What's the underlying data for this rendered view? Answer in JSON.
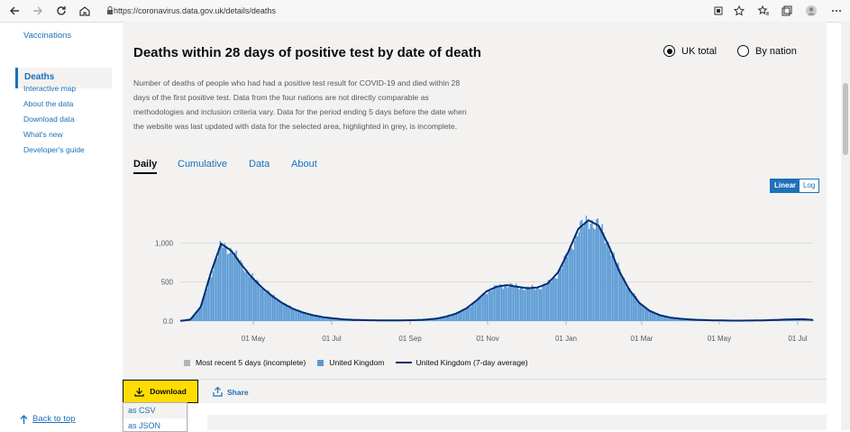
{
  "browser": {
    "url": "https://coronavirus.data.gov.uk/details/deaths"
  },
  "sidebar": {
    "items": [
      {
        "label": "Vaccinations"
      },
      {
        "label": "Deaths"
      }
    ],
    "links": [
      {
        "label": "Interactive map"
      },
      {
        "label": "About the data"
      },
      {
        "label": "Download data"
      },
      {
        "label": "What's new"
      },
      {
        "label": "Developer's guide"
      }
    ],
    "back_to_top": "Back to top"
  },
  "card": {
    "title": "Deaths within 28 days of positive test by date of death",
    "radio": [
      {
        "label": "UK total",
        "selected": true
      },
      {
        "label": "By nation",
        "selected": false
      }
    ],
    "description": "Number of deaths of people who had had a positive test result for COVID-19 and died within 28 days of the first positive test. Data from the four nations are not directly comparable as methodologies and inclusion criteria vary. Data for the period ending 5 days before the date when the website was last updated with data for the selected area, highlighted in grey, is incomplete.",
    "tabs": [
      {
        "label": "Daily",
        "active": true
      },
      {
        "label": "Cumulative",
        "active": false
      },
      {
        "label": "Data",
        "active": false
      },
      {
        "label": "About",
        "active": false
      }
    ],
    "scale": {
      "linear": "Linear",
      "log": "Log",
      "selected": "Linear"
    },
    "download_label": "Download",
    "share_label": "Share",
    "dropdown": [
      {
        "label": "as CSV"
      },
      {
        "label": "as JSON"
      }
    ]
  },
  "chart_data": {
    "type": "bar",
    "title": "",
    "xlabel": "",
    "ylabel": "",
    "ylim": [
      0,
      1400
    ],
    "yticks": [
      {
        "value": 0,
        "label": "0.0"
      },
      {
        "value": 500,
        "label": "500"
      },
      {
        "value": 1000,
        "label": "1,000"
      }
    ],
    "xticks": [
      "01 May",
      "01 Jul",
      "01 Sep",
      "01 Nov",
      "01 Jan",
      "01 Mar",
      "01 May",
      "01 Jul"
    ],
    "legend": [
      {
        "label": "Most recent 5 days (incomplete)",
        "color": "#b1b4b6",
        "kind": "square"
      },
      {
        "label": "United Kingdom",
        "color": "#5b9bd5",
        "kind": "square"
      },
      {
        "label": "United Kingdom (7-day average)",
        "color": "#002d73",
        "kind": "line"
      }
    ],
    "series_points": {
      "description": "Daily deaths (UK) approximate curve: [approx week index, deaths]",
      "points": [
        [
          0,
          2
        ],
        [
          1,
          20
        ],
        [
          2,
          180
        ],
        [
          3,
          620
        ],
        [
          4,
          990
        ],
        [
          5,
          900
        ],
        [
          6,
          720
        ],
        [
          7,
          560
        ],
        [
          8,
          430
        ],
        [
          9,
          320
        ],
        [
          10,
          230
        ],
        [
          11,
          160
        ],
        [
          12,
          110
        ],
        [
          13,
          75
        ],
        [
          14,
          50
        ],
        [
          15,
          35
        ],
        [
          16,
          22
        ],
        [
          17,
          15
        ],
        [
          18,
          12
        ],
        [
          19,
          10
        ],
        [
          20,
          9
        ],
        [
          21,
          9
        ],
        [
          22,
          10
        ],
        [
          23,
          12
        ],
        [
          24,
          18
        ],
        [
          25,
          30
        ],
        [
          26,
          55
        ],
        [
          27,
          95
        ],
        [
          28,
          160
        ],
        [
          29,
          260
        ],
        [
          30,
          380
        ],
        [
          31,
          440
        ],
        [
          32,
          460
        ],
        [
          33,
          440
        ],
        [
          34,
          420
        ],
        [
          35,
          430
        ],
        [
          36,
          480
        ],
        [
          37,
          620
        ],
        [
          38,
          880
        ],
        [
          39,
          1180
        ],
        [
          40,
          1290
        ],
        [
          41,
          1220
        ],
        [
          42,
          960
        ],
        [
          43,
          640
        ],
        [
          44,
          400
        ],
        [
          45,
          230
        ],
        [
          46,
          130
        ],
        [
          47,
          75
        ],
        [
          48,
          45
        ],
        [
          49,
          30
        ],
        [
          50,
          20
        ],
        [
          51,
          14
        ],
        [
          52,
          10
        ],
        [
          53,
          8
        ],
        [
          54,
          6
        ],
        [
          55,
          6
        ],
        [
          56,
          7
        ],
        [
          57,
          9
        ],
        [
          58,
          13
        ],
        [
          59,
          18
        ],
        [
          60,
          22
        ],
        [
          61,
          24
        ],
        [
          62,
          15
        ]
      ]
    }
  }
}
